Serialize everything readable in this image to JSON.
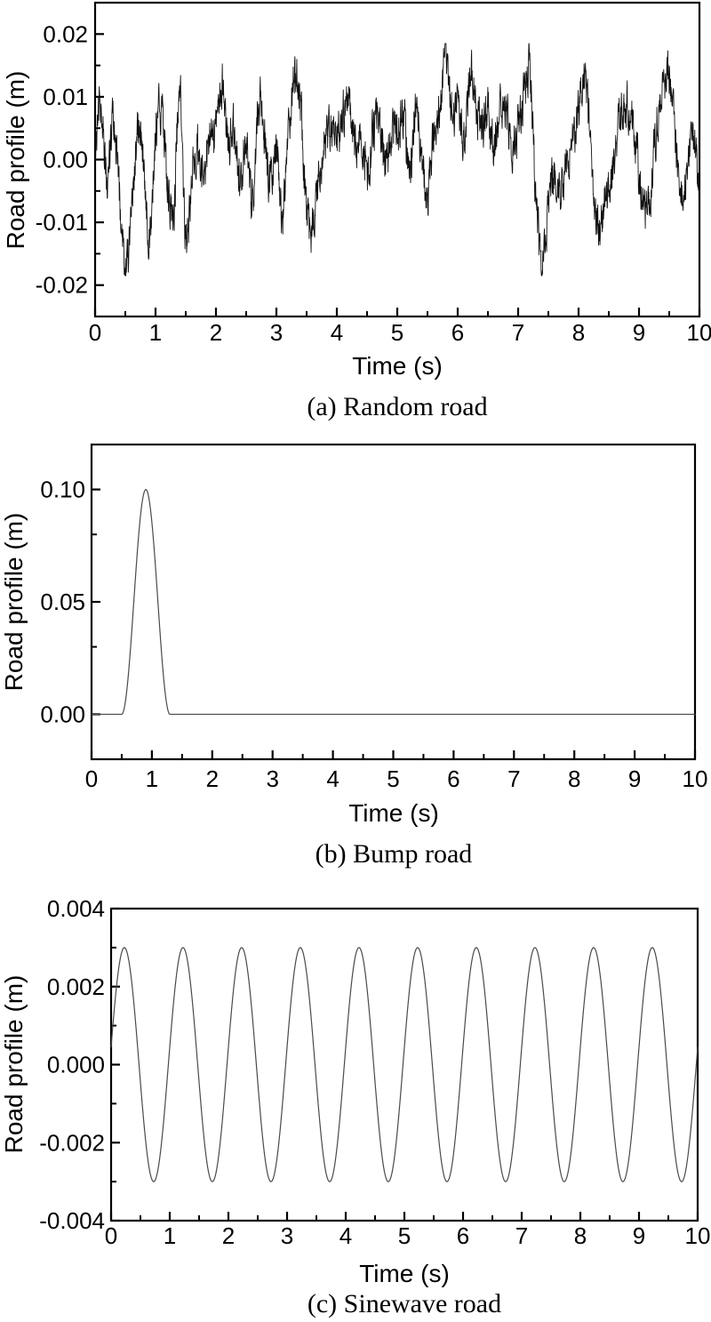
{
  "page": {
    "background": "#ffffff",
    "description": "Three stacked road-profile plots: random road, bump road, sinewave road"
  },
  "colors": {
    "axis": "#000000",
    "curve_random": "#111111",
    "curve_smooth": "#4a4a4a",
    "background": "#ffffff"
  },
  "chart_data": [
    {
      "id": "random-road",
      "type": "line",
      "caption": "(a) Random road",
      "xlabel": "Time (s)",
      "ylabel": "Road profile (m)",
      "xlim": [
        0,
        10
      ],
      "ylim": [
        -0.025,
        0.025
      ],
      "x_tick_values": [
        0,
        1,
        2,
        3,
        4,
        5,
        6,
        7,
        8,
        9,
        10
      ],
      "x_tick_labels": [
        "0",
        "1",
        "2",
        "3",
        "4",
        "5",
        "6",
        "7",
        "8",
        "9",
        "10"
      ],
      "x_minor_step": 0.5,
      "y_tick_values": [
        0.02,
        0.01,
        0.0,
        -0.01,
        -0.02
      ],
      "y_tick_labels": [
        "0.02",
        "0.01",
        "0.00",
        "-0.01",
        "-0.02"
      ],
      "y_minor_step": 0.005,
      "grid": false,
      "legend": "none",
      "series": {
        "kind": "random",
        "seed": 20240613,
        "n": 2200,
        "anchor_dt": 0.1,
        "anchor_values": [
          0.002,
          0.009,
          -0.003,
          0.006,
          -0.005,
          -0.016,
          -0.009,
          0.004,
          0.0,
          -0.013,
          0.003,
          0.008,
          -0.004,
          -0.008,
          0.011,
          -0.012,
          -0.003,
          0.003,
          -0.002,
          0.004,
          0.004,
          0.012,
          0.003,
          0.005,
          -0.004,
          0.004,
          -0.007,
          0.009,
          0.003,
          -0.004,
          0.002,
          -0.009,
          0.004,
          0.014,
          0.008,
          -0.009,
          -0.012,
          -0.003,
          0.002,
          0.005,
          0.003,
          0.007,
          0.009,
          0.002,
          0.005,
          -0.002,
          0.004,
          0.007,
          -0.001,
          0.004,
          0.004,
          0.008,
          -0.002,
          0.008,
          0.001,
          -0.007,
          0.004,
          0.008,
          0.016,
          0.007,
          0.009,
          0.002,
          0.014,
          0.008,
          0.005,
          0.008,
          0.002,
          0.008,
          0.008,
          0.002,
          0.006,
          0.01,
          0.014,
          -0.008,
          -0.016,
          -0.008,
          -0.002,
          -0.005,
          -0.001,
          0.002,
          0.008,
          0.014,
          0.002,
          -0.011,
          -0.008,
          -0.004,
          0.0,
          0.007,
          0.009,
          0.005,
          -0.002,
          -0.008,
          -0.004,
          0.006,
          0.012,
          0.014,
          0.004,
          -0.006,
          -0.003,
          0.004,
          -0.005
        ],
        "jitter_amp": 0.0032,
        "jitter_smooth": 0.45,
        "clip": 0.0185,
        "approx_std": 0.0055,
        "approx_extremes": {
          "max": 0.0175,
          "min": -0.017
        }
      }
    },
    {
      "id": "bump-road",
      "type": "line",
      "caption": "(b) Bump road",
      "xlabel": "Time (s)",
      "ylabel": "Road profile (m)",
      "xlim": [
        0,
        10
      ],
      "ylim": [
        -0.02,
        0.12
      ],
      "x_tick_values": [
        0,
        1,
        2,
        3,
        4,
        5,
        6,
        7,
        8,
        9,
        10
      ],
      "x_tick_labels": [
        "0",
        "1",
        "2",
        "3",
        "4",
        "5",
        "6",
        "7",
        "8",
        "9",
        "10"
      ],
      "x_minor_step": 0.5,
      "y_tick_values": [
        0.1,
        0.05,
        0.0
      ],
      "y_tick_labels": [
        "0.10",
        "0.05",
        "0.00"
      ],
      "y_minor_step": 0.025,
      "grid": false,
      "legend": "none",
      "series": {
        "kind": "bump",
        "start": 0.5,
        "width": 0.8,
        "height": 0.1,
        "baseline": 0.0,
        "n": 1200
      }
    },
    {
      "id": "sinewave-road",
      "type": "line",
      "caption": "(c) Sinewave road",
      "xlabel": "Time (s)",
      "ylabel": "Road profile (m)",
      "xlim": [
        0,
        10
      ],
      "ylim": [
        -0.004,
        0.004
      ],
      "x_tick_values": [
        0,
        1,
        2,
        3,
        4,
        5,
        6,
        7,
        8,
        9,
        10
      ],
      "x_tick_labels": [
        "0",
        "1",
        "2",
        "3",
        "4",
        "5",
        "6",
        "7",
        "8",
        "9",
        "10"
      ],
      "x_minor_step": 0.5,
      "y_tick_values": [
        0.004,
        0.002,
        0.0,
        -0.002,
        -0.004
      ],
      "y_tick_labels": [
        "0.004",
        "0.002",
        "0.000",
        "-0.002",
        "-0.004"
      ],
      "y_minor_step": 0.001,
      "grid": false,
      "legend": "none",
      "series": {
        "kind": "sine",
        "amplitude": 0.003,
        "frequency": 1,
        "phase_rad": 0.15,
        "n": 1500
      }
    }
  ]
}
